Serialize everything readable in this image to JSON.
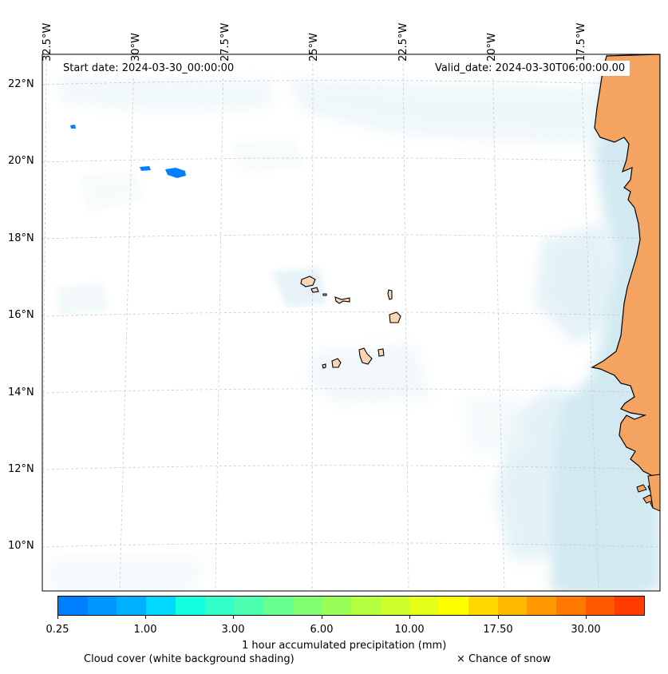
{
  "title": {
    "start_date": "Start date: 2024-03-30_00:00:00",
    "valid_date": "Valid_date: 2024-03-30T06:00:00.00"
  },
  "axes": {
    "longitude_labels": [
      "32.5°W",
      "30°W",
      "27.5°W",
      "25°W",
      "22.5°W",
      "20°W",
      "17.5°W"
    ],
    "latitude_labels": [
      "22°N",
      "20°N",
      "18°N",
      "16°N",
      "14°N",
      "12°N",
      "10°N"
    ],
    "longitude_values": [
      -32.5,
      -30,
      -27.5,
      -25,
      -22.5,
      -20,
      -17.5
    ],
    "latitude_values": [
      22,
      20,
      18,
      16,
      14,
      12,
      10
    ],
    "extent": {
      "lon_min": -32.7,
      "lon_max": -16.0,
      "lat_min": 8.9,
      "lat_max": 22.8
    }
  },
  "colorbar": {
    "label": "1 hour accumulated precipitation (mm)",
    "tick_labels": [
      "0.25",
      "1.00",
      "3.00",
      "6.00",
      "10.00",
      "17.50",
      "30.00"
    ],
    "colors": [
      "#0080ff",
      "#0096ff",
      "#00b0ff",
      "#00d8ff",
      "#12ffe0",
      "#33ffc8",
      "#4dffb0",
      "#66ff90",
      "#80ff70",
      "#99ff58",
      "#b3ff40",
      "#ccff2a",
      "#e6ff18",
      "#ffff00",
      "#ffd800",
      "#ffb800",
      "#ff9800",
      "#ff7800",
      "#ff5a00",
      "#ff3c00"
    ]
  },
  "legend": {
    "cloud_cover": "Cloud cover (white background shading)",
    "snow": "× Chance of snow"
  },
  "colors": {
    "land": "#f4a460",
    "island_land": "#fbd5b4",
    "cloud": "#add8e6",
    "precip_light": "#0080ff"
  }
}
